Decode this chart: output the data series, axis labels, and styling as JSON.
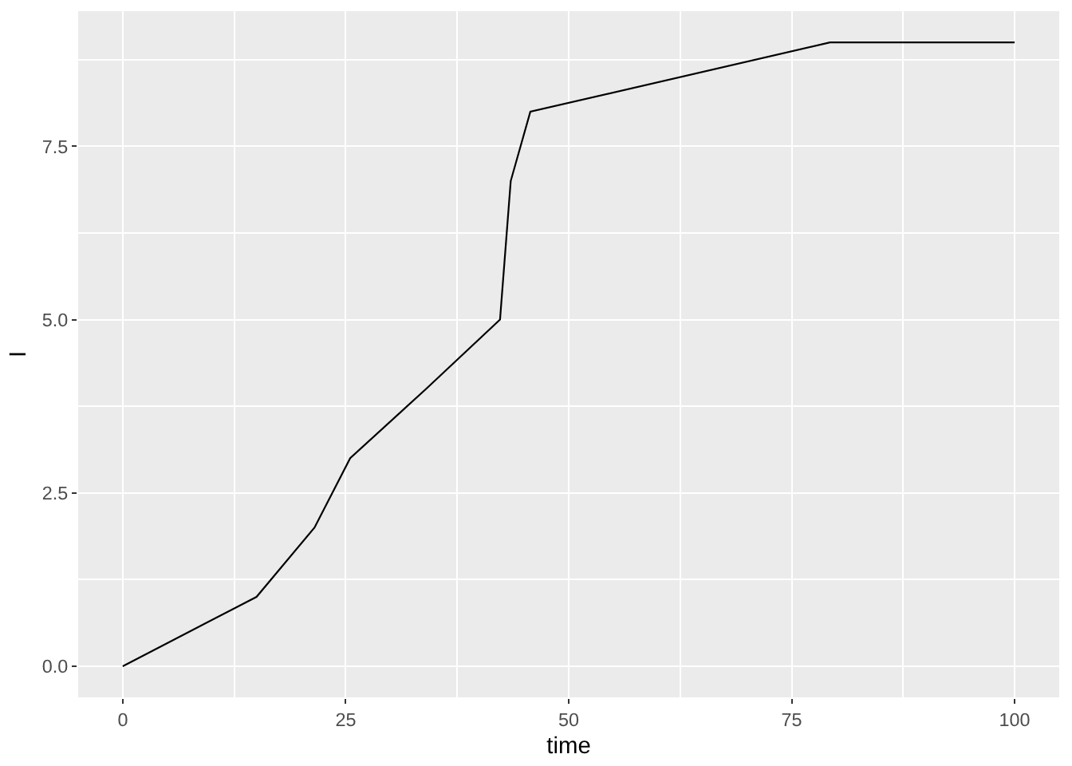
{
  "chart_data": {
    "type": "line",
    "xlabel": "time",
    "ylabel": "I",
    "x": [
      0,
      15,
      21.5,
      25.5,
      34,
      42.3,
      43.5,
      45.7,
      79.3,
      100
    ],
    "values": [
      0,
      1,
      2,
      3,
      4,
      5,
      7,
      8,
      9,
      9
    ],
    "color": "#000000",
    "xlim": [
      -5,
      105
    ],
    "ylim": [
      -0.45,
      9.45
    ],
    "xticks": [
      0,
      25,
      50,
      75,
      100
    ],
    "yticks": [
      {
        "value": 0,
        "label": "0.0"
      },
      {
        "value": 2.5,
        "label": "2.5"
      },
      {
        "value": 5,
        "label": "5.0"
      },
      {
        "value": 7.5,
        "label": "7.5"
      }
    ],
    "grid": true,
    "marker": "none",
    "line_style": "solid"
  }
}
